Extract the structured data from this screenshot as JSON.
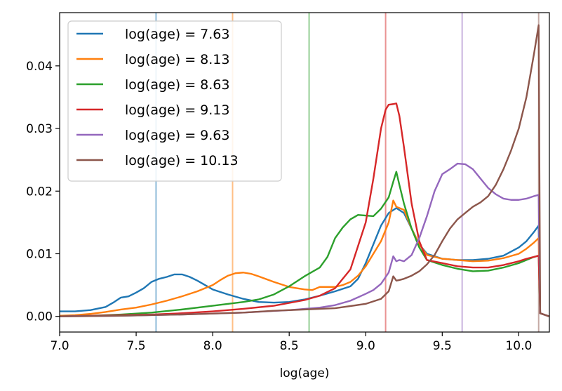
{
  "chart_data": {
    "type": "line",
    "title": "",
    "xlabel": "log(age)",
    "ylabel": "",
    "xlim": [
      7.0,
      10.2
    ],
    "ylim": [
      -0.0025,
      0.0485
    ],
    "xticks": [
      "7.0",
      "7.5",
      "8.0",
      "8.5",
      "9.0",
      "9.5",
      "10.0"
    ],
    "yticks": [
      "0.00",
      "0.01",
      "0.02",
      "0.03",
      "0.04"
    ],
    "legend_position": "top-left",
    "grid": false,
    "series": [
      {
        "name": "log(age) = 7.63",
        "color": "#1f77b4",
        "marker_x": 7.63,
        "points": [
          [
            7.0,
            0.0008
          ],
          [
            7.1,
            0.0008
          ],
          [
            7.2,
            0.001
          ],
          [
            7.3,
            0.0015
          ],
          [
            7.35,
            0.0022
          ],
          [
            7.4,
            0.003
          ],
          [
            7.45,
            0.0032
          ],
          [
            7.5,
            0.0038
          ],
          [
            7.55,
            0.0045
          ],
          [
            7.6,
            0.0055
          ],
          [
            7.65,
            0.006
          ],
          [
            7.7,
            0.0063
          ],
          [
            7.75,
            0.0067
          ],
          [
            7.8,
            0.0067
          ],
          [
            7.85,
            0.0063
          ],
          [
            7.9,
            0.0057
          ],
          [
            7.95,
            0.005
          ],
          [
            8.0,
            0.0043
          ],
          [
            8.1,
            0.0035
          ],
          [
            8.2,
            0.0028
          ],
          [
            8.3,
            0.0023
          ],
          [
            8.4,
            0.0022
          ],
          [
            8.5,
            0.0023
          ],
          [
            8.6,
            0.0027
          ],
          [
            8.7,
            0.0033
          ],
          [
            8.8,
            0.004
          ],
          [
            8.9,
            0.0048
          ],
          [
            8.95,
            0.006
          ],
          [
            9.0,
            0.0085
          ],
          [
            9.05,
            0.0115
          ],
          [
            9.1,
            0.0145
          ],
          [
            9.15,
            0.0165
          ],
          [
            9.2,
            0.0173
          ],
          [
            9.25,
            0.0165
          ],
          [
            9.3,
            0.014
          ],
          [
            9.35,
            0.0115
          ],
          [
            9.4,
            0.01
          ],
          [
            9.5,
            0.0092
          ],
          [
            9.6,
            0.009
          ],
          [
            9.7,
            0.009
          ],
          [
            9.8,
            0.0092
          ],
          [
            9.9,
            0.0097
          ],
          [
            10.0,
            0.011
          ],
          [
            10.05,
            0.012
          ],
          [
            10.1,
            0.0135
          ],
          [
            10.13,
            0.0145
          ],
          [
            10.14,
            0.0005
          ],
          [
            10.2,
            0.0
          ]
        ]
      },
      {
        "name": "log(age) = 8.13",
        "color": "#ff7f0e",
        "marker_x": 8.13,
        "points": [
          [
            7.0,
            0.0001
          ],
          [
            7.1,
            0.0002
          ],
          [
            7.2,
            0.0004
          ],
          [
            7.3,
            0.0007
          ],
          [
            7.4,
            0.0011
          ],
          [
            7.5,
            0.0014
          ],
          [
            7.6,
            0.0019
          ],
          [
            7.7,
            0.0025
          ],
          [
            7.8,
            0.0032
          ],
          [
            7.9,
            0.004
          ],
          [
            8.0,
            0.005
          ],
          [
            8.05,
            0.0058
          ],
          [
            8.1,
            0.0065
          ],
          [
            8.15,
            0.0069
          ],
          [
            8.2,
            0.007
          ],
          [
            8.25,
            0.0068
          ],
          [
            8.3,
            0.0064
          ],
          [
            8.4,
            0.0055
          ],
          [
            8.5,
            0.0047
          ],
          [
            8.6,
            0.0043
          ],
          [
            8.65,
            0.0042
          ],
          [
            8.7,
            0.0047
          ],
          [
            8.8,
            0.0047
          ],
          [
            8.85,
            0.005
          ],
          [
            8.9,
            0.0055
          ],
          [
            8.95,
            0.0065
          ],
          [
            9.0,
            0.008
          ],
          [
            9.05,
            0.01
          ],
          [
            9.1,
            0.012
          ],
          [
            9.15,
            0.015
          ],
          [
            9.18,
            0.0185
          ],
          [
            9.2,
            0.0175
          ],
          [
            9.25,
            0.017
          ],
          [
            9.3,
            0.014
          ],
          [
            9.35,
            0.0115
          ],
          [
            9.4,
            0.0098
          ],
          [
            9.5,
            0.0092
          ],
          [
            9.6,
            0.009
          ],
          [
            9.7,
            0.0088
          ],
          [
            9.8,
            0.0089
          ],
          [
            9.9,
            0.0093
          ],
          [
            10.0,
            0.01
          ],
          [
            10.05,
            0.0108
          ],
          [
            10.1,
            0.0118
          ],
          [
            10.13,
            0.0125
          ],
          [
            10.14,
            0.0005
          ],
          [
            10.2,
            0.0
          ]
        ]
      },
      {
        "name": "log(age) = 8.63",
        "color": "#2ca02c",
        "marker_x": 8.63,
        "points": [
          [
            7.0,
            0.0
          ],
          [
            7.2,
            0.0001
          ],
          [
            7.4,
            0.0003
          ],
          [
            7.6,
            0.0006
          ],
          [
            7.8,
            0.0011
          ],
          [
            8.0,
            0.0017
          ],
          [
            8.2,
            0.0023
          ],
          [
            8.3,
            0.0027
          ],
          [
            8.4,
            0.0035
          ],
          [
            8.5,
            0.0048
          ],
          [
            8.6,
            0.0064
          ],
          [
            8.7,
            0.0078
          ],
          [
            8.75,
            0.0095
          ],
          [
            8.8,
            0.0125
          ],
          [
            8.85,
            0.0142
          ],
          [
            8.9,
            0.0155
          ],
          [
            8.95,
            0.0162
          ],
          [
            9.0,
            0.0161
          ],
          [
            9.05,
            0.016
          ],
          [
            9.1,
            0.0172
          ],
          [
            9.15,
            0.019
          ],
          [
            9.18,
            0.0215
          ],
          [
            9.2,
            0.0231
          ],
          [
            9.22,
            0.021
          ],
          [
            9.25,
            0.018
          ],
          [
            9.3,
            0.014
          ],
          [
            9.35,
            0.011
          ],
          [
            9.4,
            0.009
          ],
          [
            9.5,
            0.0082
          ],
          [
            9.6,
            0.0076
          ],
          [
            9.7,
            0.0072
          ],
          [
            9.8,
            0.0073
          ],
          [
            9.9,
            0.0078
          ],
          [
            10.0,
            0.0085
          ],
          [
            10.05,
            0.009
          ],
          [
            10.1,
            0.0095
          ],
          [
            10.13,
            0.0097
          ],
          [
            10.14,
            0.0005
          ],
          [
            10.2,
            0.0
          ]
        ]
      },
      {
        "name": "log(age) = 9.13",
        "color": "#d62728",
        "marker_x": 9.13,
        "points": [
          [
            7.0,
            0.0
          ],
          [
            7.2,
            0.0001
          ],
          [
            7.4,
            0.0002
          ],
          [
            7.6,
            0.0003
          ],
          [
            7.8,
            0.0005
          ],
          [
            8.0,
            0.0008
          ],
          [
            8.2,
            0.0012
          ],
          [
            8.4,
            0.0017
          ],
          [
            8.6,
            0.0026
          ],
          [
            8.7,
            0.0033
          ],
          [
            8.8,
            0.0045
          ],
          [
            8.9,
            0.0075
          ],
          [
            9.0,
            0.015
          ],
          [
            9.05,
            0.022
          ],
          [
            9.1,
            0.03
          ],
          [
            9.13,
            0.033
          ],
          [
            9.15,
            0.0338
          ],
          [
            9.18,
            0.0339
          ],
          [
            9.2,
            0.034
          ],
          [
            9.22,
            0.032
          ],
          [
            9.25,
            0.027
          ],
          [
            9.3,
            0.018
          ],
          [
            9.35,
            0.012
          ],
          [
            9.4,
            0.009
          ],
          [
            9.5,
            0.0085
          ],
          [
            9.6,
            0.008
          ],
          [
            9.7,
            0.0078
          ],
          [
            9.8,
            0.0078
          ],
          [
            9.9,
            0.0082
          ],
          [
            10.0,
            0.0088
          ],
          [
            10.05,
            0.0092
          ],
          [
            10.1,
            0.0095
          ],
          [
            10.13,
            0.0097
          ],
          [
            10.14,
            0.0005
          ],
          [
            10.2,
            0.0
          ]
        ]
      },
      {
        "name": "log(age) = 9.63",
        "color": "#9467bd",
        "marker_x": 9.63,
        "points": [
          [
            7.0,
            0.0
          ],
          [
            7.4,
            0.0001
          ],
          [
            7.8,
            0.0003
          ],
          [
            8.2,
            0.0006
          ],
          [
            8.5,
            0.001
          ],
          [
            8.7,
            0.0014
          ],
          [
            8.8,
            0.0018
          ],
          [
            8.9,
            0.0025
          ],
          [
            9.0,
            0.0036
          ],
          [
            9.05,
            0.0042
          ],
          [
            9.1,
            0.0052
          ],
          [
            9.15,
            0.007
          ],
          [
            9.18,
            0.0096
          ],
          [
            9.2,
            0.0088
          ],
          [
            9.22,
            0.009
          ],
          [
            9.25,
            0.0088
          ],
          [
            9.3,
            0.0098
          ],
          [
            9.35,
            0.0125
          ],
          [
            9.4,
            0.016
          ],
          [
            9.45,
            0.02
          ],
          [
            9.5,
            0.0227
          ],
          [
            9.55,
            0.0235
          ],
          [
            9.6,
            0.0244
          ],
          [
            9.65,
            0.0243
          ],
          [
            9.7,
            0.0235
          ],
          [
            9.75,
            0.022
          ],
          [
            9.8,
            0.0205
          ],
          [
            9.85,
            0.0195
          ],
          [
            9.9,
            0.0188
          ],
          [
            9.95,
            0.0186
          ],
          [
            10.0,
            0.0186
          ],
          [
            10.05,
            0.0188
          ],
          [
            10.1,
            0.0192
          ],
          [
            10.13,
            0.0194
          ],
          [
            10.14,
            0.0005
          ],
          [
            10.2,
            0.0
          ]
        ]
      },
      {
        "name": "log(age) = 10.13",
        "color": "#8c564b",
        "marker_x": 10.13,
        "points": [
          [
            7.0,
            0.0
          ],
          [
            7.4,
            0.0001
          ],
          [
            7.8,
            0.0003
          ],
          [
            8.2,
            0.0006
          ],
          [
            8.4,
            0.0009
          ],
          [
            8.6,
            0.0011
          ],
          [
            8.8,
            0.0013
          ],
          [
            9.0,
            0.002
          ],
          [
            9.1,
            0.0028
          ],
          [
            9.15,
            0.004
          ],
          [
            9.18,
            0.0064
          ],
          [
            9.2,
            0.0057
          ],
          [
            9.22,
            0.0058
          ],
          [
            9.25,
            0.006
          ],
          [
            9.3,
            0.0065
          ],
          [
            9.35,
            0.0072
          ],
          [
            9.4,
            0.0083
          ],
          [
            9.45,
            0.0098
          ],
          [
            9.5,
            0.012
          ],
          [
            9.55,
            0.014
          ],
          [
            9.6,
            0.0155
          ],
          [
            9.65,
            0.0165
          ],
          [
            9.7,
            0.0175
          ],
          [
            9.75,
            0.0182
          ],
          [
            9.8,
            0.0192
          ],
          [
            9.85,
            0.021
          ],
          [
            9.9,
            0.0235
          ],
          [
            9.95,
            0.0265
          ],
          [
            10.0,
            0.03
          ],
          [
            10.05,
            0.035
          ],
          [
            10.1,
            0.042
          ],
          [
            10.13,
            0.0465
          ],
          [
            10.14,
            0.0005
          ],
          [
            10.2,
            0.0
          ]
        ]
      }
    ]
  }
}
